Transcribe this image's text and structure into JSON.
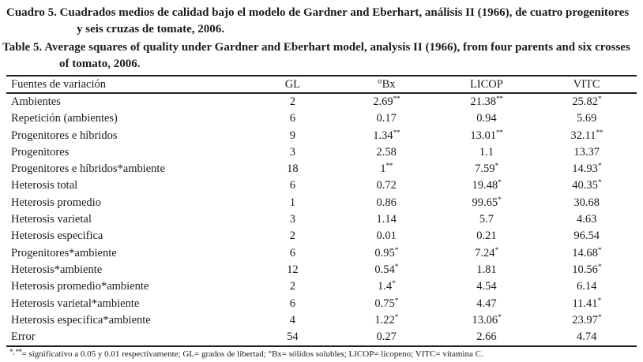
{
  "captions": {
    "es": {
      "label": "Cuadro 5.",
      "text": " Cuadrados medios de calidad bajo el modelo de Gardner and Eberhart, análisis II (1966), de cuatro progenitores y seis cruzas de tomate, 2006."
    },
    "en": {
      "label": "Table 5.",
      "text": " Average squares of quality under Gardner and Eberhart model, analysis II (1966), from four parents and six crosses of tomato, 2006."
    }
  },
  "table": {
    "columns": [
      "Fuentes de variación",
      "GL",
      "°Bx",
      "LICOP",
      "VITC"
    ],
    "rows": [
      {
        "source": "Ambientes",
        "gl": "2",
        "bx": "2.69",
        "bx_sup": "**",
        "licop": "21.38",
        "licop_sup": "**",
        "vitc": "25.82",
        "vitc_sup": "*"
      },
      {
        "source": "Repetición (ambientes)",
        "gl": "6",
        "bx": "0.17",
        "bx_sup": "",
        "licop": "0.94",
        "licop_sup": "",
        "vitc": "5.69",
        "vitc_sup": ""
      },
      {
        "source": "Progenitores e híbridos",
        "gl": "9",
        "bx": "1.34",
        "bx_sup": "**",
        "licop": "13.01",
        "licop_sup": "**",
        "vitc": "32.11",
        "vitc_sup": "**"
      },
      {
        "source": "Progenitores",
        "gl": "3",
        "bx": "2.58",
        "bx_sup": "",
        "licop": "1.1",
        "licop_sup": "",
        "vitc": "13.37",
        "vitc_sup": ""
      },
      {
        "source": "Progenitores e híbridos*ambiente",
        "gl": "18",
        "bx": "1",
        "bx_sup": "**",
        "licop": "7.59",
        "licop_sup": "*",
        "vitc": "14.93",
        "vitc_sup": "*"
      },
      {
        "source": "Heterosis total",
        "gl": "6",
        "bx": "0.72",
        "bx_sup": "",
        "licop": "19.48",
        "licop_sup": "*",
        "vitc": "40.35",
        "vitc_sup": "*"
      },
      {
        "source": "Heterosis promedio",
        "gl": "1",
        "bx": "0.86",
        "bx_sup": "",
        "licop": "99.65",
        "licop_sup": "*",
        "vitc": "30.68",
        "vitc_sup": ""
      },
      {
        "source": "Heterosis varietal",
        "gl": "3",
        "bx": "1.14",
        "bx_sup": "",
        "licop": "5.7",
        "licop_sup": "",
        "vitc": "4.63",
        "vitc_sup": ""
      },
      {
        "source": "Heterosis especifica",
        "gl": "2",
        "bx": "0.01",
        "bx_sup": "",
        "licop": "0.21",
        "licop_sup": "",
        "vitc": "96.54",
        "vitc_sup": ""
      },
      {
        "source": "Progenitores*ambiente",
        "gl": "6",
        "bx": "0.95",
        "bx_sup": "*",
        "licop": "7.24",
        "licop_sup": "*",
        "vitc": "14.68",
        "vitc_sup": "*"
      },
      {
        "source": "Heterosis*ambiente",
        "gl": "12",
        "bx": "0.54",
        "bx_sup": "*",
        "licop": "1.81",
        "licop_sup": "",
        "vitc": "10.56",
        "vitc_sup": "*"
      },
      {
        "source": "Heterosis promedio*ambiente",
        "gl": "2",
        "bx": "1.4",
        "bx_sup": "*",
        "licop": "4.54",
        "licop_sup": "",
        "vitc": "6.14",
        "vitc_sup": ""
      },
      {
        "source": "Heterosis varietal*ambiente",
        "gl": "6",
        "bx": "0.75",
        "bx_sup": "*",
        "licop": "4.47",
        "licop_sup": "",
        "vitc": "11.41",
        "vitc_sup": "*"
      },
      {
        "source": "Heterosis especifica*ambiente",
        "gl": "4",
        "bx": "1.22",
        "bx_sup": "*",
        "licop": "13.06",
        "licop_sup": "*",
        "vitc": "23.97",
        "vitc_sup": "*"
      },
      {
        "source": "Error",
        "gl": "54",
        "bx": "0.27",
        "bx_sup": "",
        "licop": "2.66",
        "licop_sup": "",
        "vitc": "4.74",
        "vitc_sup": ""
      }
    ]
  },
  "footnote": {
    "symbols": "*, **",
    "text": "= significativo a 0.05 y 0.01 respectivamente; GL= grados de libertad; °Bx= sólidos solubles; LICOP= licopeno; VITC= vitamina C."
  }
}
